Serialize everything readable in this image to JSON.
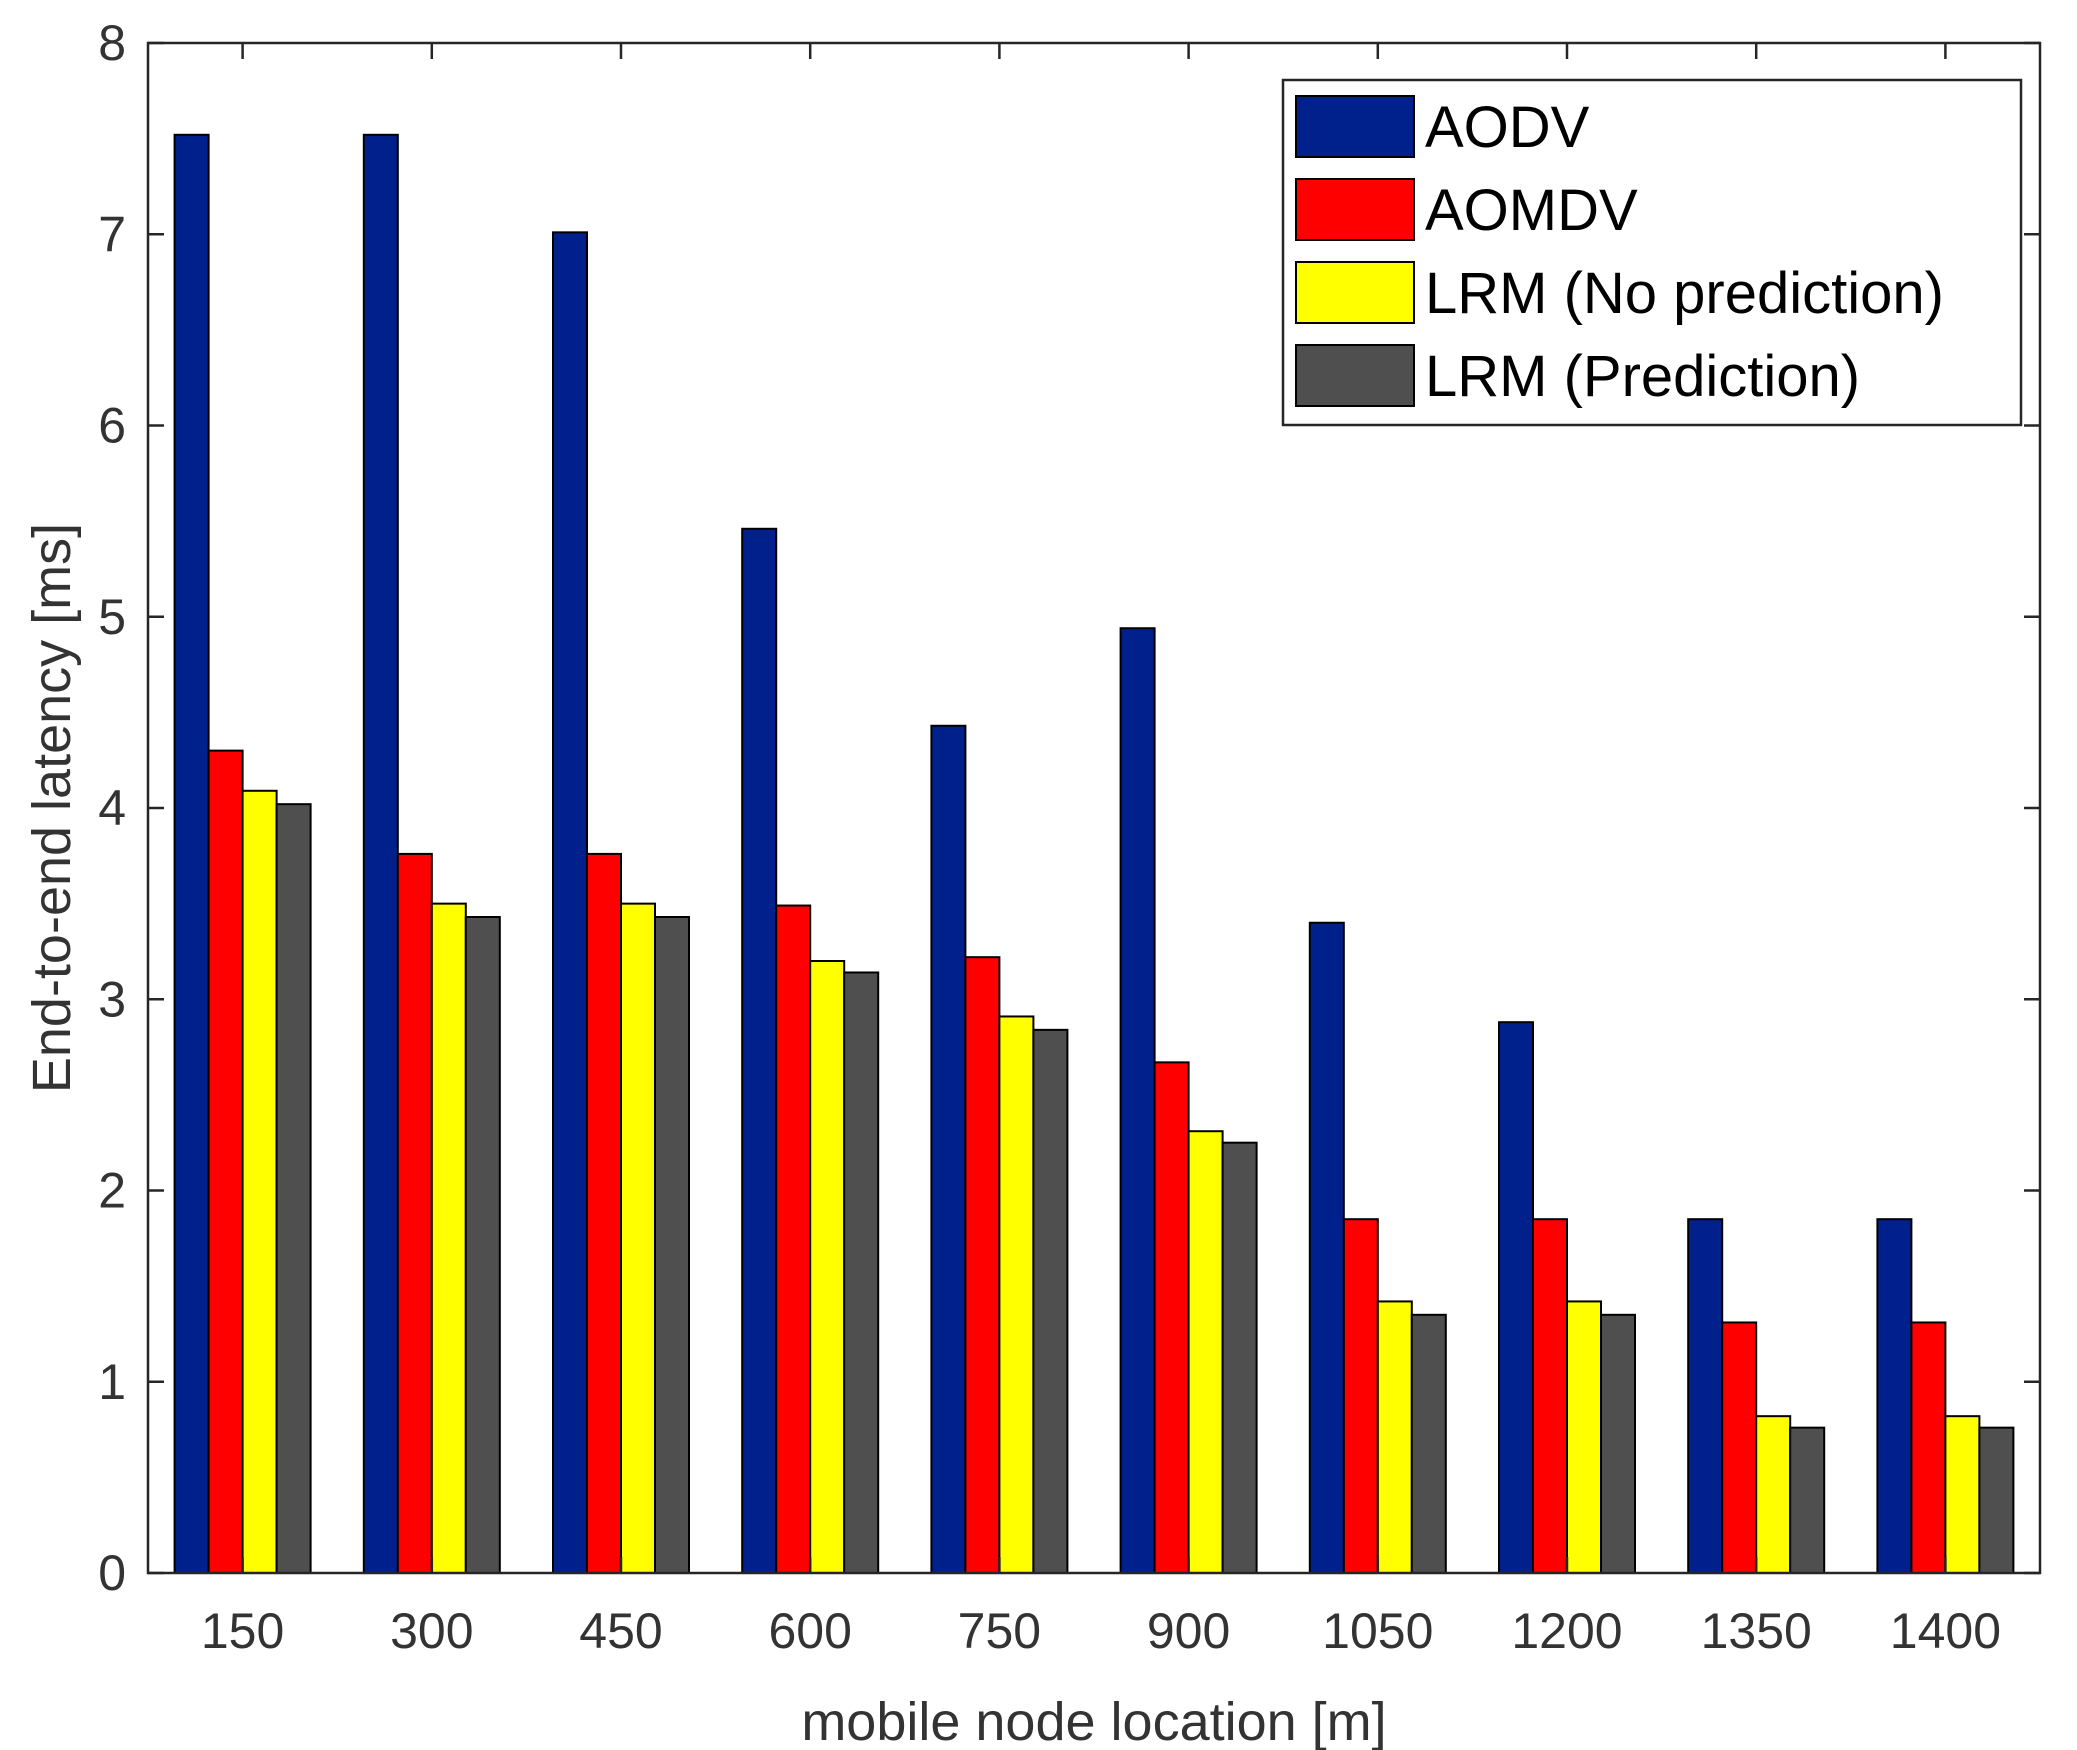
{
  "chart_data": {
    "type": "bar",
    "title": "",
    "xlabel": "mobile node location [m]",
    "ylabel": "End-to-end latency [ms]",
    "ylim": [
      0,
      8
    ],
    "yticks": [
      0,
      1,
      2,
      3,
      4,
      5,
      6,
      7,
      8
    ],
    "categories": [
      "150",
      "300",
      "450",
      "600",
      "750",
      "900",
      "1050",
      "1200",
      "1350",
      "1400"
    ],
    "series": [
      {
        "name": "AODV",
        "color": "#00218C",
        "values": [
          7.52,
          7.52,
          7.01,
          5.46,
          4.43,
          4.94,
          3.4,
          2.88,
          1.85,
          1.85
        ]
      },
      {
        "name": "AOMDV",
        "color": "#FF0000",
        "values": [
          4.3,
          3.76,
          3.76,
          3.49,
          3.22,
          2.67,
          1.85,
          1.85,
          1.31,
          1.31
        ]
      },
      {
        "name": "LRM (No prediction)",
        "color": "#FFFF00",
        "values": [
          4.09,
          3.5,
          3.5,
          3.2,
          2.91,
          2.31,
          1.42,
          1.42,
          0.82,
          0.82
        ]
      },
      {
        "name": "LRM (Prediction)",
        "color": "#4F4F4F",
        "values": [
          4.02,
          3.43,
          3.43,
          3.14,
          2.84,
          2.25,
          1.35,
          1.35,
          0.76,
          0.76
        ]
      }
    ],
    "legend_position": "top-right",
    "grid": false
  }
}
